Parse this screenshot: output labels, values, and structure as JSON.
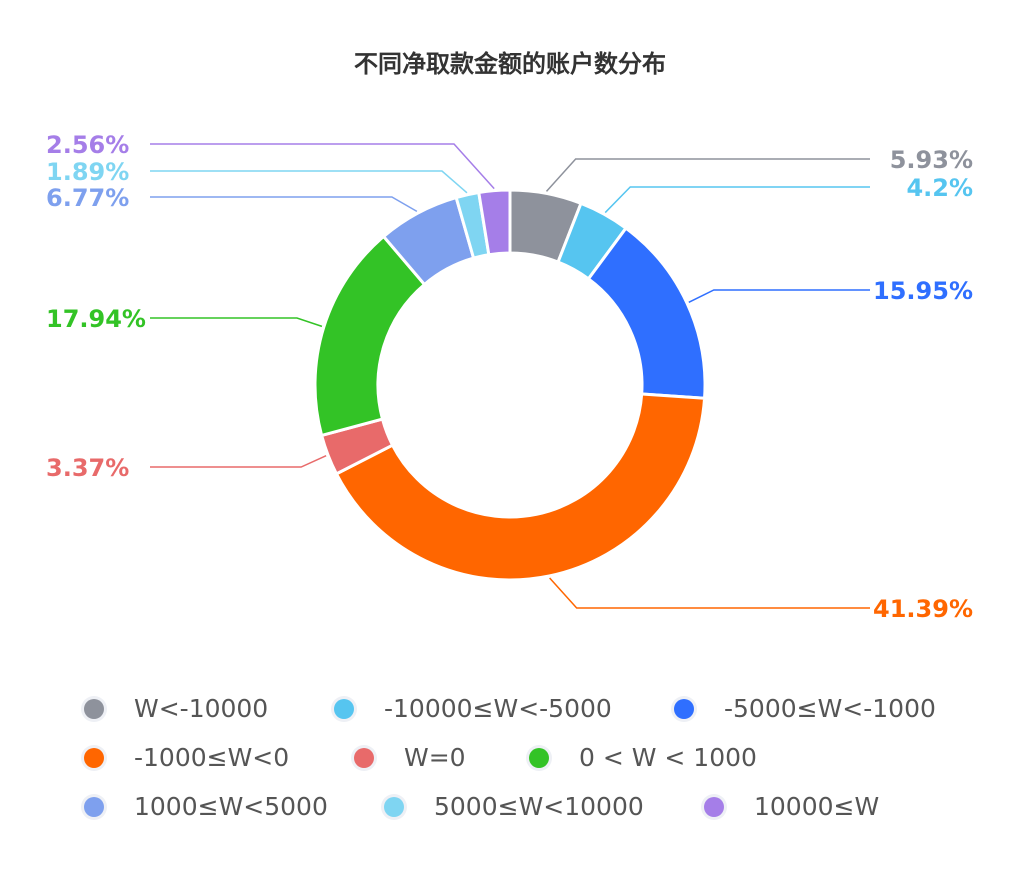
{
  "chart_data": {
    "type": "pie",
    "donut": true,
    "title": "不同净取款金额的账户数分布",
    "legend_position": "bottom",
    "slices": [
      {
        "name": "W<-10000",
        "value": 5.93,
        "label": "5.93%",
        "color": "#8e929c"
      },
      {
        "name": "-10000≤W<-5000",
        "value": 4.2,
        "label": "4.2%",
        "color": "#56c5f0"
      },
      {
        "name": "-5000≤W<-1000",
        "value": 15.95,
        "label": "15.95%",
        "color": "#2f6fff"
      },
      {
        "name": "-1000≤W<0",
        "value": 41.39,
        "label": "41.39%",
        "color": "#ff6600"
      },
      {
        "name": "W=0",
        "value": 3.37,
        "label": "3.37%",
        "color": "#e86a6a"
      },
      {
        "name": "0 < W < 1000",
        "value": 17.94,
        "label": "17.94%",
        "color": "#33c326"
      },
      {
        "name": "1000≤W<5000",
        "value": 6.77,
        "label": "6.77%",
        "color": "#7ea0ee"
      },
      {
        "name": "5000≤W<10000",
        "value": 1.89,
        "label": "1.89%",
        "color": "#7fd5f2"
      },
      {
        "name": "10000≤W",
        "value": 2.56,
        "label": "2.56%",
        "color": "#a57ee8"
      }
    ]
  }
}
